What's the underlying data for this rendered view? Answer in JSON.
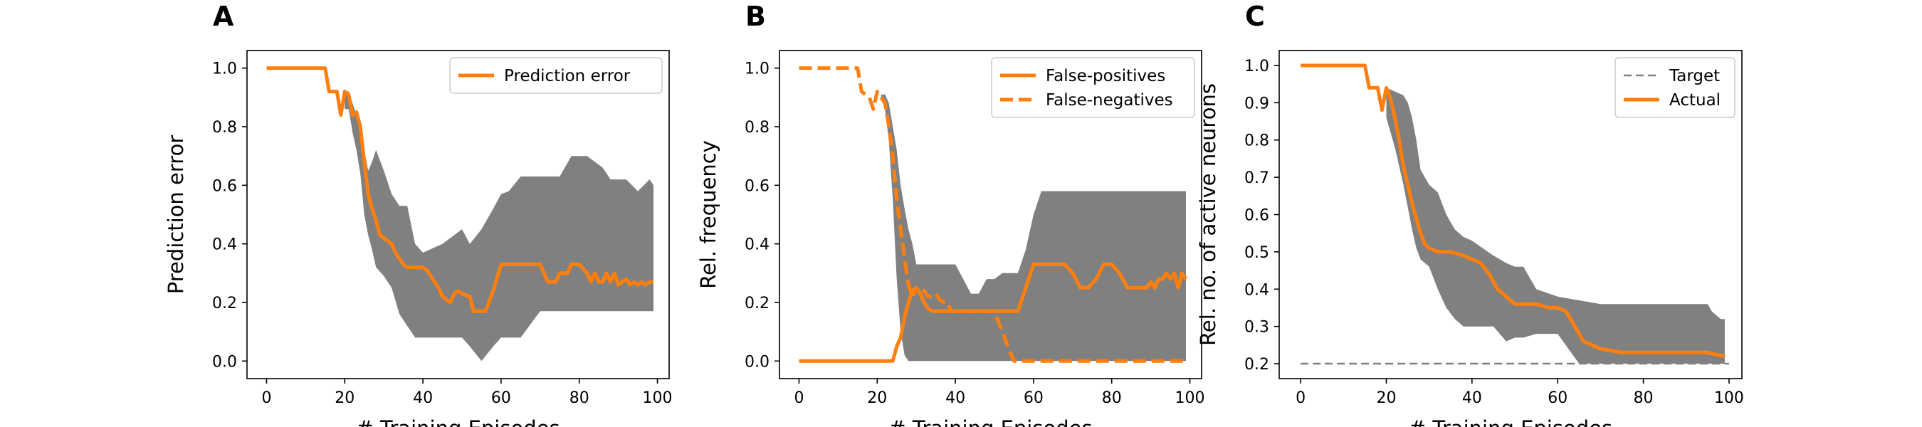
{
  "colors": {
    "accent": "#ff7f0e",
    "band": "#808080",
    "target": "#808080"
  },
  "chart_data": [
    {
      "panel": "A",
      "type": "line",
      "xlabel": "# Training Episodes",
      "ylabel": "Prediction error",
      "xlim": [
        -5,
        103
      ],
      "ylim": [
        -0.06,
        1.06
      ],
      "xticks": [
        0,
        20,
        40,
        60,
        80,
        100
      ],
      "yticks": [
        0.0,
        0.2,
        0.4,
        0.6,
        0.8,
        1.0
      ],
      "ytick_decimals": 1,
      "legend_position": "upper right",
      "series": [
        {
          "name": "Prediction error",
          "style": "solid",
          "x": [
            0,
            15,
            16,
            18,
            19,
            20,
            21,
            22,
            23,
            24,
            25,
            26,
            27,
            28,
            29,
            30,
            31,
            32,
            33,
            35,
            36,
            37,
            38,
            40,
            41,
            42,
            43,
            44,
            45,
            46,
            47,
            48,
            49,
            50,
            52,
            53,
            54,
            56,
            58,
            60,
            62,
            64,
            66,
            68,
            70,
            72,
            74,
            75,
            77,
            78,
            79,
            80,
            82,
            83,
            84,
            85,
            86,
            87,
            88,
            89,
            90,
            91,
            92,
            93,
            94,
            95,
            96,
            97,
            98,
            99
          ],
          "y": [
            1.0,
            1.0,
            0.92,
            0.92,
            0.84,
            0.92,
            0.91,
            0.84,
            0.85,
            0.8,
            0.68,
            0.57,
            0.52,
            0.48,
            0.43,
            0.42,
            0.41,
            0.4,
            0.37,
            0.33,
            0.32,
            0.32,
            0.32,
            0.32,
            0.31,
            0.29,
            0.27,
            0.25,
            0.22,
            0.21,
            0.2,
            0.23,
            0.24,
            0.23,
            0.22,
            0.17,
            0.17,
            0.17,
            0.24,
            0.33,
            0.33,
            0.33,
            0.33,
            0.33,
            0.33,
            0.27,
            0.27,
            0.3,
            0.3,
            0.33,
            0.33,
            0.33,
            0.3,
            0.27,
            0.3,
            0.27,
            0.27,
            0.3,
            0.27,
            0.3,
            0.26,
            0.27,
            0.28,
            0.26,
            0.27,
            0.26,
            0.27,
            0.26,
            0.27,
            0.27
          ]
        }
      ],
      "band": {
        "x": [
          20,
          21,
          22,
          23,
          24,
          25,
          26,
          27,
          28,
          30,
          32,
          34,
          36,
          38,
          40,
          45,
          50,
          52,
          55,
          58,
          60,
          62,
          65,
          70,
          75,
          78,
          80,
          82,
          86,
          88,
          92,
          95,
          98,
          99
        ],
        "lower": [
          0.86,
          0.86,
          0.78,
          0.72,
          0.64,
          0.5,
          0.43,
          0.38,
          0.32,
          0.29,
          0.25,
          0.16,
          0.12,
          0.08,
          0.08,
          0.08,
          0.08,
          0.05,
          0.0,
          0.05,
          0.08,
          0.08,
          0.08,
          0.17,
          0.17,
          0.17,
          0.17,
          0.17,
          0.17,
          0.17,
          0.17,
          0.17,
          0.17,
          0.17
        ],
        "upper": [
          0.92,
          0.92,
          0.88,
          0.84,
          0.8,
          0.72,
          0.65,
          0.68,
          0.72,
          0.65,
          0.57,
          0.53,
          0.53,
          0.4,
          0.37,
          0.4,
          0.45,
          0.4,
          0.45,
          0.52,
          0.57,
          0.58,
          0.63,
          0.63,
          0.63,
          0.7,
          0.7,
          0.7,
          0.66,
          0.62,
          0.62,
          0.58,
          0.62,
          0.6
        ]
      }
    },
    {
      "panel": "B",
      "type": "line",
      "xlabel": "# Training Episodes",
      "ylabel": "Rel. frequency",
      "xlim": [
        -5,
        103
      ],
      "ylim": [
        -0.06,
        1.06
      ],
      "xticks": [
        0,
        20,
        40,
        60,
        80,
        100
      ],
      "yticks": [
        0.0,
        0.2,
        0.4,
        0.6,
        0.8,
        1.0
      ],
      "ytick_decimals": 1,
      "legend_position": "upper right",
      "series": [
        {
          "name": "False-positives",
          "style": "solid",
          "x": [
            0,
            24,
            25,
            26,
            27,
            28,
            29,
            30,
            31,
            32,
            33,
            34,
            35,
            40,
            45,
            50,
            55,
            56,
            58,
            60,
            62,
            65,
            68,
            70,
            72,
            74,
            76,
            78,
            80,
            82,
            84,
            86,
            88,
            89,
            90,
            91,
            92,
            93,
            94,
            95,
            96,
            97,
            98,
            99
          ],
          "y": [
            0.0,
            0.0,
            0.05,
            0.08,
            0.15,
            0.2,
            0.24,
            0.25,
            0.23,
            0.2,
            0.18,
            0.17,
            0.17,
            0.17,
            0.17,
            0.17,
            0.17,
            0.17,
            0.25,
            0.33,
            0.33,
            0.33,
            0.33,
            0.3,
            0.25,
            0.25,
            0.28,
            0.33,
            0.33,
            0.3,
            0.25,
            0.25,
            0.25,
            0.25,
            0.27,
            0.25,
            0.28,
            0.28,
            0.3,
            0.28,
            0.3,
            0.25,
            0.3,
            0.28
          ]
        },
        {
          "name": "False-negatives",
          "style": "dashed",
          "x": [
            0,
            15,
            16,
            18,
            19,
            20,
            21,
            22,
            23,
            24,
            25,
            26,
            27,
            28,
            29,
            30,
            31,
            32,
            33,
            34,
            35,
            36,
            37,
            38,
            39,
            40,
            45,
            50,
            52,
            54,
            55,
            60,
            65,
            70,
            75,
            80,
            85,
            90,
            95,
            99
          ],
          "y": [
            1.0,
            1.0,
            0.92,
            0.9,
            0.86,
            0.92,
            0.9,
            0.88,
            0.8,
            0.7,
            0.55,
            0.45,
            0.35,
            0.26,
            0.22,
            0.25,
            0.23,
            0.24,
            0.22,
            0.22,
            0.23,
            0.21,
            0.2,
            0.2,
            0.17,
            0.17,
            0.17,
            0.17,
            0.1,
            0.03,
            0.0,
            0.0,
            0.0,
            0.0,
            0.0,
            0.0,
            0.0,
            0.0,
            0.0,
            0.0
          ]
        }
      ],
      "band": {
        "x": [
          21,
          22,
          23,
          24,
          25,
          26,
          27,
          28,
          29,
          30,
          32,
          34,
          36,
          40,
          44,
          46,
          48,
          50,
          52,
          56,
          58,
          60,
          62,
          65,
          70,
          75,
          80,
          85,
          88,
          90,
          92,
          94,
          96,
          98,
          99
        ],
        "lower": [
          0.9,
          0.86,
          0.75,
          0.55,
          0.28,
          0.1,
          0.02,
          0.0,
          0.0,
          0.0,
          0.0,
          0.0,
          0.0,
          0.0,
          0.0,
          0.0,
          0.0,
          0.0,
          0.0,
          0.0,
          0.0,
          0.0,
          0.0,
          0.0,
          0.0,
          0.0,
          0.0,
          0.0,
          0.0,
          0.0,
          0.0,
          0.0,
          0.0,
          0.0,
          0.0
        ],
        "upper": [
          0.91,
          0.91,
          0.88,
          0.8,
          0.72,
          0.6,
          0.52,
          0.45,
          0.4,
          0.33,
          0.33,
          0.33,
          0.33,
          0.33,
          0.23,
          0.23,
          0.28,
          0.28,
          0.3,
          0.3,
          0.38,
          0.5,
          0.58,
          0.58,
          0.58,
          0.58,
          0.58,
          0.58,
          0.58,
          0.58,
          0.58,
          0.58,
          0.58,
          0.58,
          0.58
        ]
      }
    },
    {
      "panel": "C",
      "type": "line",
      "xlabel": "# Training Episodes",
      "ylabel": "Rel. no. of active neurons",
      "xlim": [
        -5,
        103
      ],
      "ylim": [
        0.16,
        1.04
      ],
      "xticks": [
        0,
        20,
        40,
        60,
        80,
        100
      ],
      "yticks": [
        0.2,
        0.3,
        0.4,
        0.5,
        0.6,
        0.7,
        0.8,
        0.9,
        1.0
      ],
      "ytick_decimals": 1,
      "legend_position": "upper right",
      "series": [
        {
          "name": "Target",
          "style": "dashed-thin",
          "x": [
            0,
            100
          ],
          "y": [
            0.2,
            0.2
          ]
        },
        {
          "name": "Actual",
          "style": "solid",
          "x": [
            0,
            15,
            16,
            18,
            19,
            20,
            21,
            22,
            23,
            24,
            25,
            26,
            27,
            28,
            29,
            30,
            32,
            35,
            38,
            40,
            42,
            44,
            46,
            48,
            50,
            52,
            55,
            58,
            60,
            62,
            64,
            66,
            68,
            70,
            75,
            80,
            85,
            90,
            95,
            99
          ],
          "y": [
            1.0,
            1.0,
            0.94,
            0.94,
            0.88,
            0.94,
            0.91,
            0.86,
            0.8,
            0.73,
            0.68,
            0.63,
            0.59,
            0.55,
            0.52,
            0.51,
            0.5,
            0.5,
            0.49,
            0.48,
            0.47,
            0.44,
            0.4,
            0.38,
            0.36,
            0.36,
            0.36,
            0.35,
            0.35,
            0.34,
            0.3,
            0.26,
            0.25,
            0.24,
            0.23,
            0.23,
            0.23,
            0.23,
            0.23,
            0.22
          ]
        }
      ],
      "band": {
        "x": [
          20,
          22,
          24,
          25,
          26,
          27,
          28,
          29,
          30,
          32,
          34,
          36,
          38,
          40,
          45,
          48,
          50,
          52,
          55,
          60,
          65,
          70,
          75,
          80,
          85,
          90,
          95,
          96,
          97,
          98,
          99
        ],
        "lower": [
          0.86,
          0.78,
          0.68,
          0.62,
          0.56,
          0.51,
          0.48,
          0.47,
          0.46,
          0.4,
          0.35,
          0.32,
          0.3,
          0.3,
          0.3,
          0.26,
          0.27,
          0.27,
          0.28,
          0.28,
          0.2,
          0.2,
          0.2,
          0.2,
          0.2,
          0.2,
          0.2,
          0.2,
          0.2,
          0.2,
          0.2
        ],
        "upper": [
          0.94,
          0.93,
          0.92,
          0.9,
          0.86,
          0.8,
          0.72,
          0.7,
          0.68,
          0.66,
          0.6,
          0.56,
          0.54,
          0.53,
          0.49,
          0.47,
          0.46,
          0.46,
          0.4,
          0.38,
          0.37,
          0.36,
          0.36,
          0.36,
          0.36,
          0.36,
          0.36,
          0.34,
          0.33,
          0.32,
          0.32
        ]
      }
    }
  ]
}
